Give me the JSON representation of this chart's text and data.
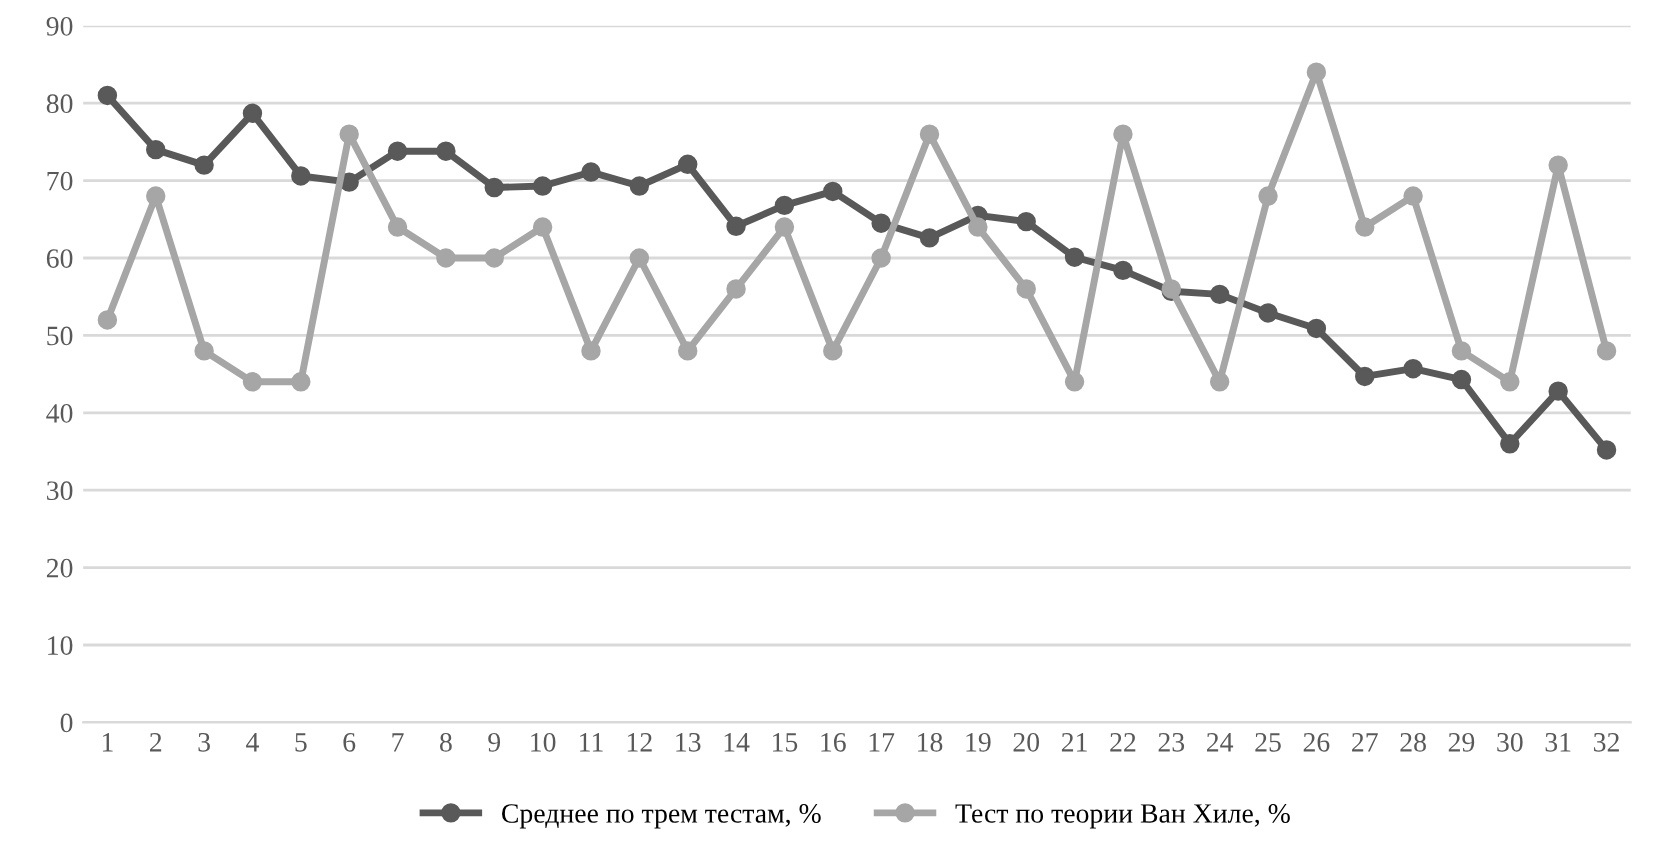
{
  "chart_data": {
    "type": "line",
    "categories": [
      "1",
      "2",
      "3",
      "4",
      "5",
      "6",
      "7",
      "8",
      "9",
      "10",
      "11",
      "12",
      "13",
      "14",
      "15",
      "16",
      "17",
      "18",
      "19",
      "20",
      "21",
      "22",
      "23",
      "24",
      "25",
      "26",
      "27",
      "28",
      "29",
      "30",
      "31",
      "32"
    ],
    "series": [
      {
        "name": "Среднее по трем тестам, %",
        "color": "#595959",
        "values": [
          81,
          74,
          72,
          78.7,
          70.6,
          69.8,
          73.8,
          73.8,
          69.1,
          69.3,
          71.1,
          69.3,
          72.1,
          64.1,
          66.8,
          68.6,
          64.5,
          62.6,
          65.5,
          64.7,
          60.1,
          58.4,
          55.7,
          55.3,
          52.9,
          50.9,
          44.7,
          45.7,
          44.3,
          36,
          42.8,
          35.2
        ]
      },
      {
        "name": "Тест по теории Ван Хиле, %",
        "color": "#a6a6a6",
        "values": [
          52,
          68,
          48,
          44,
          44,
          76,
          64,
          60,
          60,
          64,
          48,
          60,
          48,
          56,
          64,
          48,
          60,
          76,
          64,
          56,
          44,
          76,
          56,
          44,
          68,
          84,
          64,
          68,
          48,
          44,
          72,
          48
        ]
      }
    ],
    "ylim": [
      0,
      90
    ],
    "yticks": [
      0,
      10,
      20,
      30,
      40,
      50,
      60,
      70,
      80,
      90
    ],
    "grid": "y",
    "legend": "bottom",
    "marker": "circle",
    "line_style": "solid"
  }
}
